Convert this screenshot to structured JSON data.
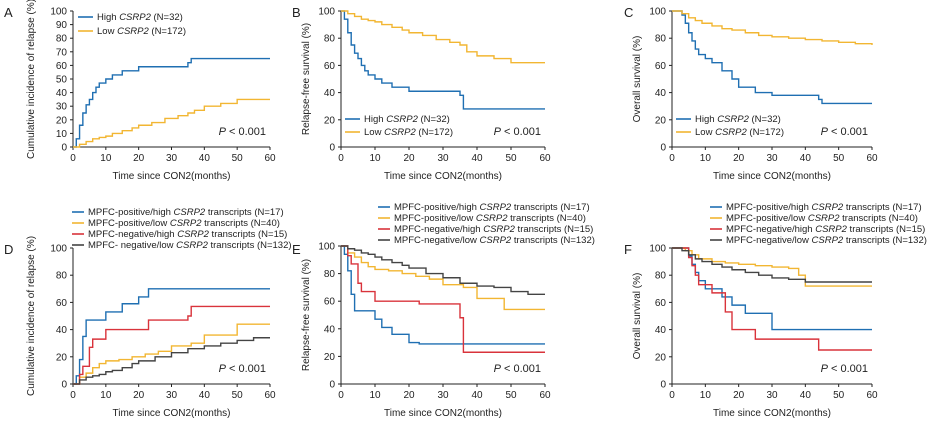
{
  "colors": {
    "blue": "#1f6fb2",
    "orange": "#f2b632",
    "red": "#d9333b",
    "gray": "#444444"
  },
  "chart_data": [
    {
      "panel": "A",
      "type": "line",
      "ylabel": "Cumulative incidence of relapse (%)",
      "xlabel": "Time since CON2(months)",
      "xlim": [
        0,
        60
      ],
      "ylim": [
        0,
        100
      ],
      "xticks": [
        "0",
        "10",
        "20",
        "30",
        "40",
        "50",
        "60"
      ],
      "yticks": [
        "0",
        "10",
        "20",
        "30",
        "40",
        "50",
        "60",
        "70",
        "80",
        "90",
        "100"
      ],
      "pvalue": "< 0.001",
      "legend_position": "top-left",
      "series": [
        {
          "name": "High CSRP2 (N=32)",
          "color": "blue",
          "x": [
            0,
            1,
            2,
            3,
            4,
            5,
            6,
            7,
            8,
            10,
            12,
            15,
            20,
            25,
            30,
            35,
            36,
            60
          ],
          "y": [
            0,
            6,
            16,
            25,
            31,
            35,
            40,
            44,
            47,
            50,
            53,
            56,
            59,
            59,
            59,
            62,
            65,
            65
          ]
        },
        {
          "name": "Low CSRP2 (N=172)",
          "color": "orange",
          "x": [
            0,
            2,
            4,
            6,
            8,
            10,
            12,
            15,
            18,
            20,
            24,
            28,
            32,
            35,
            37,
            40,
            45,
            50,
            60
          ],
          "y": [
            0,
            2,
            4,
            6,
            7,
            8,
            10,
            12,
            14,
            16,
            18,
            21,
            23,
            25,
            27,
            30,
            32,
            35,
            35
          ]
        }
      ]
    },
    {
      "panel": "B",
      "type": "line",
      "ylabel": "Relapse-free survival (%)",
      "xlabel": "Time since CON2(months)",
      "xlim": [
        0,
        60
      ],
      "ylim": [
        0,
        100
      ],
      "xticks": [
        "0",
        "10",
        "20",
        "30",
        "40",
        "50",
        "60"
      ],
      "yticks": [
        "0",
        "20",
        "40",
        "60",
        "80",
        "100"
      ],
      "pvalue": "< 0.001",
      "legend_position": "bottom-left",
      "series": [
        {
          "name": "High CSRP2 (N=32)",
          "color": "blue",
          "x": [
            0,
            1,
            2,
            3,
            4,
            5,
            6,
            7,
            8,
            10,
            12,
            15,
            20,
            25,
            30,
            35,
            36,
            60
          ],
          "y": [
            100,
            94,
            84,
            75,
            69,
            65,
            60,
            56,
            53,
            50,
            47,
            44,
            41,
            41,
            41,
            38,
            28,
            28
          ]
        },
        {
          "name": "Low CSRP2 (N=172)",
          "color": "orange",
          "x": [
            0,
            2,
            4,
            6,
            8,
            10,
            12,
            15,
            18,
            20,
            24,
            28,
            32,
            35,
            37,
            40,
            45,
            50,
            60
          ],
          "y": [
            100,
            98,
            96,
            94,
            93,
            92,
            90,
            88,
            86,
            84,
            82,
            79,
            77,
            75,
            70,
            67,
            65,
            62,
            62
          ]
        }
      ]
    },
    {
      "panel": "C",
      "type": "line",
      "ylabel": "Overall survival (%)",
      "xlabel": "Time since CON2(months)",
      "xlim": [
        0,
        60
      ],
      "ylim": [
        0,
        100
      ],
      "xticks": [
        "0",
        "10",
        "20",
        "30",
        "40",
        "50",
        "60"
      ],
      "yticks": [
        "0",
        "20",
        "40",
        "60",
        "80",
        "100"
      ],
      "pvalue": "< 0.001",
      "legend_position": "bottom-left",
      "series": [
        {
          "name": "High CSRP2 (N=32)",
          "color": "blue",
          "x": [
            0,
            3,
            4,
            5,
            6,
            7,
            8,
            10,
            12,
            15,
            18,
            20,
            25,
            30,
            35,
            44,
            45,
            60
          ],
          "y": [
            100,
            97,
            91,
            84,
            78,
            72,
            68,
            65,
            62,
            56,
            50,
            44,
            40,
            38,
            38,
            35,
            32,
            32
          ]
        },
        {
          "name": "Low CSRP2 (N=172)",
          "color": "orange",
          "x": [
            0,
            3,
            5,
            7,
            9,
            12,
            15,
            18,
            22,
            26,
            30,
            35,
            40,
            45,
            50,
            55,
            60
          ],
          "y": [
            100,
            98,
            95,
            93,
            91,
            89,
            87,
            86,
            84,
            82,
            81,
            80,
            79,
            78,
            77,
            76,
            75
          ]
        }
      ]
    },
    {
      "panel": "D",
      "type": "line",
      "ylabel": "Cumulative incidence of relapse (%)",
      "xlabel": "Time since CON2(months)",
      "xlim": [
        0,
        60
      ],
      "ylim": [
        0,
        100
      ],
      "xticks": [
        "0",
        "10",
        "20",
        "30",
        "40",
        "50",
        "60"
      ],
      "yticks": [
        "0",
        "20",
        "40",
        "60",
        "80",
        "100"
      ],
      "pvalue": "< 0.001",
      "legend_position": "top-left",
      "series": [
        {
          "name": "MPFC-positive/high CSRP2 transcripts (N=17)",
          "color": "blue",
          "x": [
            0,
            1,
            2,
            3,
            4,
            6,
            10,
            12,
            15,
            20,
            23,
            60
          ],
          "y": [
            0,
            6,
            18,
            35,
            47,
            47,
            53,
            53,
            59,
            64,
            70,
            70
          ]
        },
        {
          "name": "MPFC-positive/low CSRP2 transcripts (N=40)",
          "color": "orange",
          "x": [
            0,
            2,
            4,
            6,
            8,
            10,
            14,
            18,
            22,
            26,
            30,
            36,
            40,
            50,
            60
          ],
          "y": [
            0,
            5,
            8,
            12,
            15,
            17,
            18,
            20,
            22,
            24,
            28,
            30,
            36,
            44,
            44
          ]
        },
        {
          "name": "MPFC-negative/high CSRP2 transcripts (N=15)",
          "color": "red",
          "x": [
            0,
            2,
            3,
            5,
            6,
            10,
            23,
            30,
            35,
            36,
            60
          ],
          "y": [
            0,
            7,
            13,
            27,
            33,
            40,
            47,
            47,
            50,
            57,
            57
          ]
        },
        {
          "name": "MPFC- negative/low CSRP2 transcripts (N=132)",
          "color": "gray",
          "x": [
            0,
            2,
            4,
            6,
            8,
            10,
            12,
            15,
            18,
            20,
            25,
            30,
            35,
            40,
            45,
            50,
            55,
            60
          ],
          "y": [
            0,
            3,
            5,
            6,
            7,
            9,
            10,
            12,
            15,
            17,
            20,
            23,
            26,
            28,
            30,
            32,
            34,
            34
          ]
        }
      ]
    },
    {
      "panel": "E",
      "type": "line",
      "ylabel": "Relapse-free survival (%)",
      "xlabel": "Time since CON2(months)",
      "xlim": [
        0,
        60
      ],
      "ylim": [
        0,
        100
      ],
      "xticks": [
        "0",
        "10",
        "20",
        "30",
        "40",
        "50",
        "60"
      ],
      "yticks": [
        "0",
        "20",
        "40",
        "60",
        "80",
        "100"
      ],
      "pvalue": "< 0.001",
      "legend_position": "top",
      "series": [
        {
          "name": "MPFC-positive/high CSRP2 transcripts (N=17)",
          "color": "blue",
          "x": [
            0,
            1,
            2,
            3,
            4,
            5,
            10,
            12,
            15,
            20,
            23,
            60
          ],
          "y": [
            100,
            94,
            82,
            65,
            53,
            53,
            47,
            41,
            36,
            30,
            29,
            29
          ]
        },
        {
          "name": "MPFC-positive/low CSRP2 transcripts (N=40)",
          "color": "orange",
          "x": [
            0,
            2,
            4,
            6,
            8,
            10,
            14,
            18,
            22,
            26,
            30,
            36,
            40,
            48,
            60
          ],
          "y": [
            100,
            95,
            92,
            88,
            85,
            83,
            82,
            80,
            78,
            76,
            72,
            70,
            62,
            54,
            54
          ]
        },
        {
          "name": "MPFC-negative/high CSRP2 transcripts (N=15)",
          "color": "red",
          "x": [
            0,
            2,
            3,
            5,
            6,
            10,
            23,
            33,
            35,
            36,
            60
          ],
          "y": [
            100,
            93,
            87,
            73,
            67,
            60,
            58,
            58,
            48,
            23,
            23
          ]
        },
        {
          "name": "MPFC-negative/low CSRP2 transcripts (N=132)",
          "color": "gray",
          "x": [
            0,
            2,
            4,
            6,
            8,
            10,
            12,
            15,
            18,
            20,
            25,
            30,
            35,
            40,
            45,
            50,
            55,
            60
          ],
          "y": [
            100,
            98,
            97,
            95,
            94,
            92,
            90,
            88,
            86,
            84,
            80,
            77,
            73,
            71,
            70,
            67,
            65,
            65
          ]
        }
      ]
    },
    {
      "panel": "F",
      "type": "line",
      "ylabel": "Overall survival (%)",
      "xlabel": "Time since CON2(months)",
      "xlim": [
        0,
        60
      ],
      "ylim": [
        0,
        100
      ],
      "xticks": [
        "0",
        "10",
        "20",
        "30",
        "40",
        "50",
        "60"
      ],
      "yticks": [
        "0",
        "20",
        "40",
        "60",
        "80",
        "100"
      ],
      "pvalue": "< 0.001",
      "legend_position": "top",
      "series": [
        {
          "name": "MPFC-positive/high CSRP2 transcripts (N=17)",
          "color": "blue",
          "x": [
            0,
            5,
            6,
            7,
            8,
            10,
            15,
            18,
            22,
            30,
            60
          ],
          "y": [
            100,
            94,
            88,
            82,
            76,
            70,
            64,
            58,
            52,
            40,
            40
          ]
        },
        {
          "name": "MPFC-positive/low CSRP2 transcripts (N=40)",
          "color": "orange",
          "x": [
            0,
            4,
            6,
            8,
            12,
            16,
            20,
            25,
            30,
            35,
            38,
            40,
            60
          ],
          "y": [
            100,
            98,
            95,
            92,
            90,
            89,
            88,
            87,
            86,
            85,
            80,
            72,
            72
          ]
        },
        {
          "name": "MPFC-negative/high CSRP2 transcripts (N=15)",
          "color": "red",
          "x": [
            0,
            5,
            6,
            7,
            8,
            12,
            16,
            18,
            25,
            44,
            60
          ],
          "y": [
            100,
            93,
            87,
            80,
            73,
            67,
            53,
            40,
            33,
            25,
            25
          ]
        },
        {
          "name": "MPFC-negative/low CSRP2 transcripts (N=132)",
          "color": "gray",
          "x": [
            0,
            3,
            5,
            7,
            9,
            12,
            15,
            18,
            22,
            26,
            30,
            35,
            40,
            45,
            50,
            60
          ],
          "y": [
            100,
            98,
            95,
            92,
            90,
            88,
            86,
            84,
            82,
            80,
            78,
            77,
            75,
            75,
            75,
            75
          ]
        }
      ]
    }
  ]
}
